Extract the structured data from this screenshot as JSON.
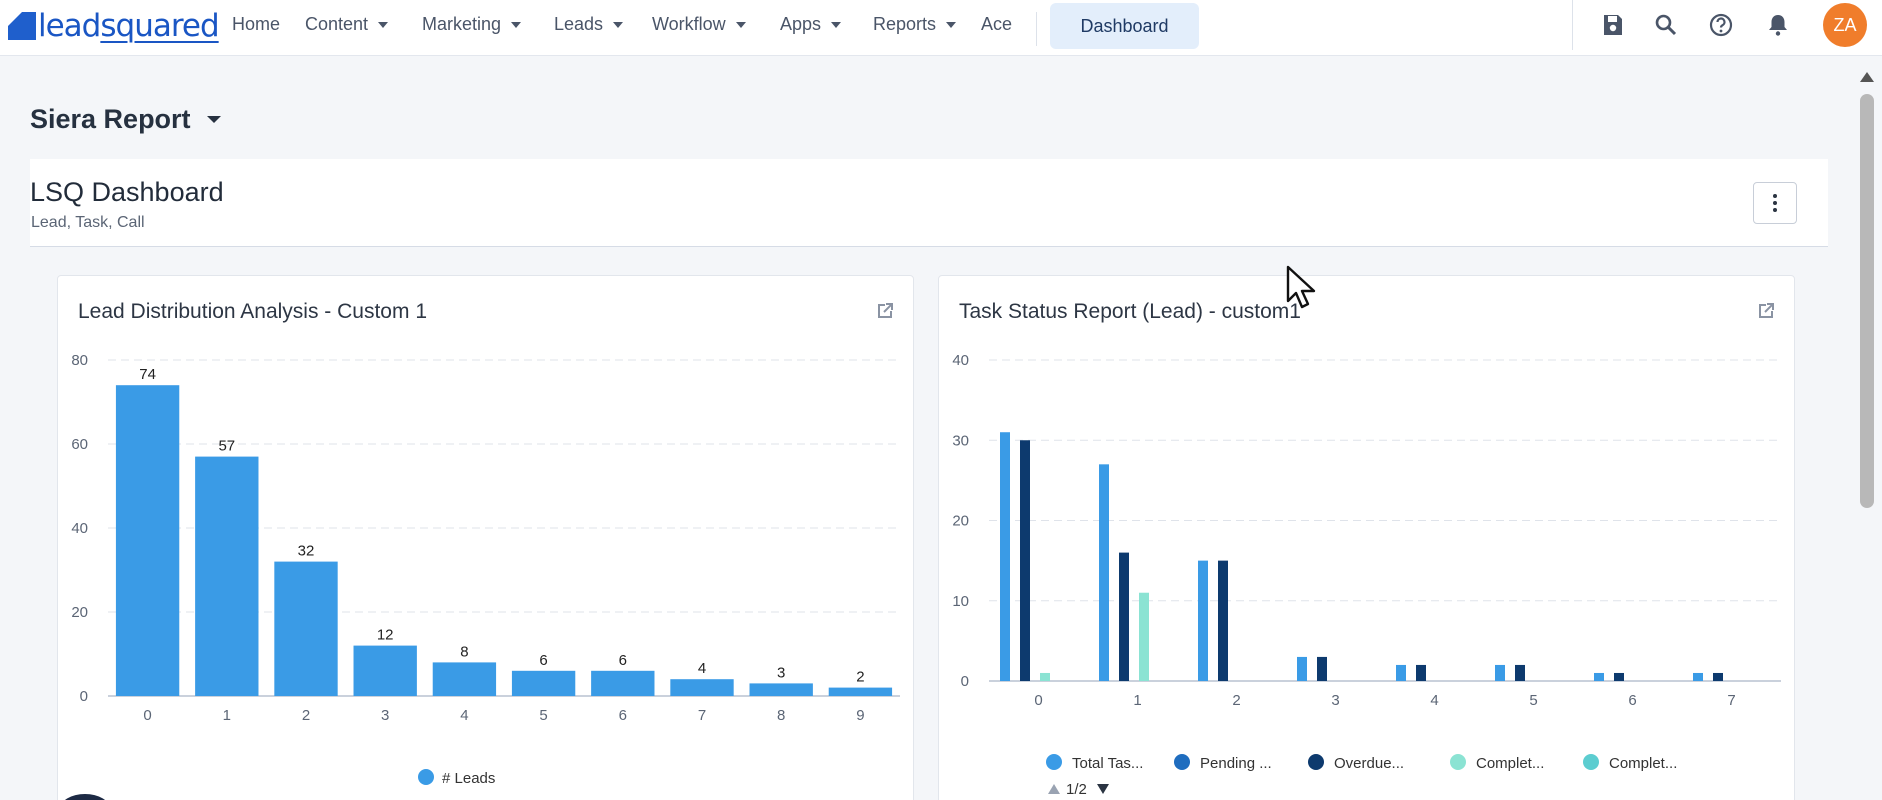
{
  "topnav": {
    "logo_prefix": "lead",
    "logo_suffix": "squared",
    "items": [
      {
        "label": "Home",
        "caret": false
      },
      {
        "label": "Content",
        "caret": true
      },
      {
        "label": "Marketing",
        "caret": true
      },
      {
        "label": "Leads",
        "caret": true
      },
      {
        "label": "Workflow",
        "caret": true
      },
      {
        "label": "Apps",
        "caret": true
      },
      {
        "label": "Reports",
        "caret": true
      },
      {
        "label": "Ace",
        "caret": false
      }
    ],
    "active_pill": "Dashboard",
    "icons": [
      "save-icon",
      "search-icon",
      "help-icon",
      "bell-icon"
    ],
    "avatar_initials": "ZA",
    "avatar_color": "#f07d2b"
  },
  "page": {
    "report_title": "Siera Report"
  },
  "dashboard": {
    "title": "LSQ Dashboard",
    "subtitle": "Lead, Task, Call"
  },
  "cards": [
    {
      "title": "Lead Distribution Analysis - Custom 1",
      "chart_data": {
        "type": "bar",
        "categories": [
          "0",
          "1",
          "2",
          "3",
          "4",
          "5",
          "6",
          "7",
          "8",
          "9"
        ],
        "series": [
          {
            "name": "# Leads",
            "values": [
              74,
              57,
              32,
              12,
              8,
              6,
              6,
              4,
              3,
              2
            ],
            "color": "#3a9be6"
          }
        ],
        "ylim": [
          0,
          80
        ],
        "yticks": [
          0,
          20,
          40,
          60,
          80
        ],
        "grid": true,
        "data_labels": true,
        "legend": "bottom-center"
      }
    },
    {
      "title": "Task Status Report (Lead) - custom1",
      "chart_data": {
        "type": "bar",
        "categories": [
          "0",
          "1",
          "2",
          "3",
          "4",
          "5",
          "6",
          "7"
        ],
        "series": [
          {
            "name": "Total Tas...",
            "values": [
              31,
              27,
              15,
              3,
              2,
              2,
              1,
              1
            ],
            "color": "#3a9be6"
          },
          {
            "name": "Overdue...",
            "values": [
              30,
              16,
              15,
              3,
              2,
              2,
              1,
              1
            ],
            "color": "#0d3a6e"
          },
          {
            "name": "Complet...",
            "values": [
              1,
              11,
              0,
              0,
              0,
              0,
              0,
              0
            ],
            "color": "#8be3d3"
          }
        ],
        "legend_entries": [
          {
            "name": "Total Tas...",
            "color": "#3a9be6"
          },
          {
            "name": "Pending ...",
            "color": "#1f6dbf"
          },
          {
            "name": "Overdue...",
            "color": "#0d3a6e"
          },
          {
            "name": "Complet...",
            "color": "#8be3d3"
          },
          {
            "name": "Complet...",
            "color": "#5ccdd0"
          }
        ],
        "ylim": [
          0,
          40
        ],
        "yticks": [
          0,
          10,
          20,
          30,
          40
        ],
        "grid": true,
        "legend": "bottom-center",
        "legend_page": "1/2"
      }
    }
  ]
}
